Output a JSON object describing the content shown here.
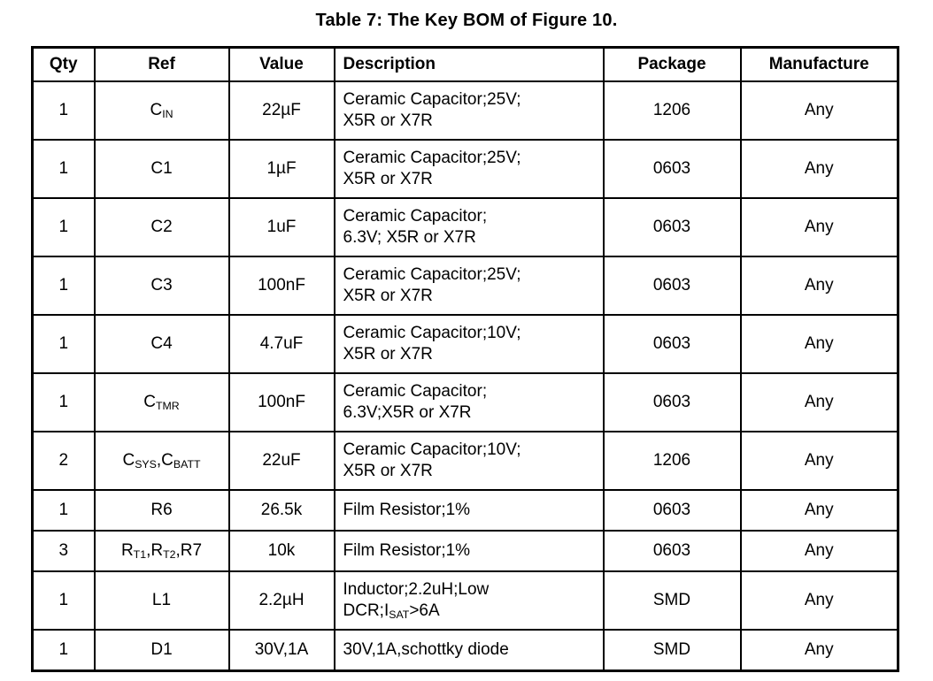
{
  "title": "Table 7: The Key BOM of Figure 10.",
  "table": {
    "headers": [
      "Qty",
      "Ref",
      "Value",
      "Description",
      "Package",
      "Manufacture"
    ],
    "rows": [
      {
        "qty": "1",
        "ref": "C~IN~",
        "value": "22µF",
        "description": "Ceramic Capacitor;25V;\nX5R or X7R",
        "package": "1206",
        "manufacture": "Any"
      },
      {
        "qty": "1",
        "ref": "C1",
        "value": "1µF",
        "description": "Ceramic Capacitor;25V;\nX5R or X7R",
        "package": "0603",
        "manufacture": "Any"
      },
      {
        "qty": "1",
        "ref": "C2",
        "value": "1uF",
        "description": "Ceramic Capacitor;\n6.3V; X5R or X7R",
        "package": "0603",
        "manufacture": "Any"
      },
      {
        "qty": "1",
        "ref": "C3",
        "value": "100nF",
        "description": "Ceramic Capacitor;25V;\nX5R or X7R",
        "package": "0603",
        "manufacture": "Any"
      },
      {
        "qty": "1",
        "ref": "C4",
        "value": "4.7uF",
        "description": "Ceramic Capacitor;10V;\nX5R or X7R",
        "package": "0603",
        "manufacture": "Any"
      },
      {
        "qty": "1",
        "ref": "C~TMR~",
        "value": "100nF",
        "description": "Ceramic Capacitor;\n6.3V;X5R or X7R",
        "package": "0603",
        "manufacture": "Any"
      },
      {
        "qty": "2",
        "ref": "C~SYS~,C~BATT~",
        "value": "22uF",
        "description": "Ceramic Capacitor;10V;\nX5R or X7R",
        "package": "1206",
        "manufacture": "Any"
      },
      {
        "qty": "1",
        "ref": "R6",
        "value": "26.5k",
        "description": "Film Resistor;1%",
        "package": "0603",
        "manufacture": "Any"
      },
      {
        "qty": "3",
        "ref": "R~T1~,R~T2~,R7",
        "value": "10k",
        "description": "Film Resistor;1%",
        "package": "0603",
        "manufacture": "Any"
      },
      {
        "qty": "1",
        "ref": "L1",
        "value": "2.2µH",
        "description": "Inductor;2.2uH;Low\nDCR;I~SAT~>6A",
        "package": "SMD",
        "manufacture": "Any"
      },
      {
        "qty": "1",
        "ref": "D1",
        "value": "30V,1A",
        "description": "30V,1A,schottky diode",
        "package": "SMD",
        "manufacture": "Any"
      }
    ]
  }
}
